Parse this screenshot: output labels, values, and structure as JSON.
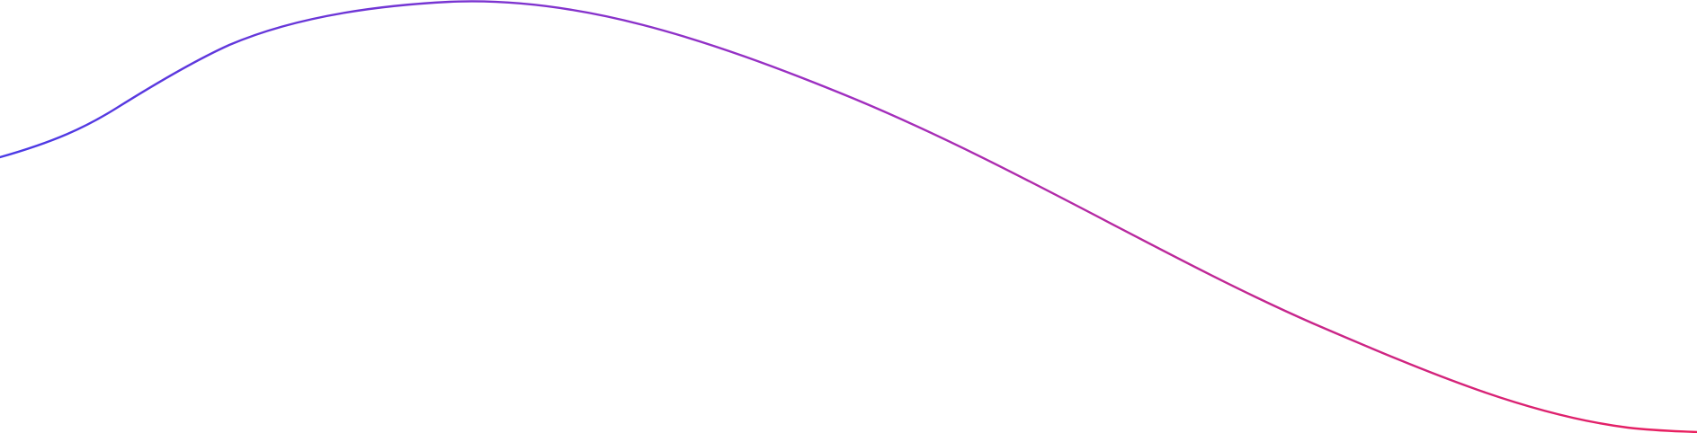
{
  "decoration": {
    "kind": "gradient-wave-line",
    "gradient_start_color": "#4b3be6",
    "gradient_mid_color": "#a02fc0",
    "gradient_end_color": "#ea1f5e",
    "background_color": "#ffffff"
  }
}
